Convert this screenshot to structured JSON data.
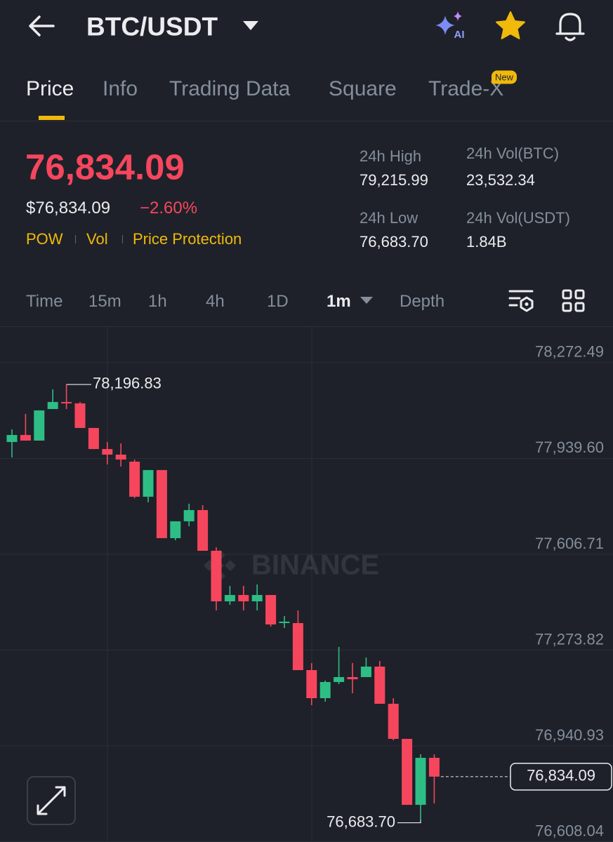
{
  "header": {
    "title": "BTC/USDT",
    "ai_label": "AI"
  },
  "tabs": [
    "Price",
    "Info",
    "Trading Data",
    "Square",
    "Trade-X"
  ],
  "new_badge": "New",
  "price": {
    "last": "76,834.09",
    "usd": "$76,834.09",
    "change": "−2.60%",
    "tags": [
      "POW",
      "Vol",
      "Price Protection"
    ]
  },
  "stats": [
    {
      "label": "24h High",
      "value": "79,215.99"
    },
    {
      "label": "24h Vol(BTC)",
      "value": "23,532.34"
    },
    {
      "label": "24h Low",
      "value": "76,683.70"
    },
    {
      "label": "24h Vol(USDT)",
      "value": "1.84B"
    }
  ],
  "intervals": [
    "Time",
    "15m",
    "1h",
    "4h",
    "1D",
    "1m",
    "Depth"
  ],
  "chart_data": {
    "type": "candlestick",
    "watermark": "BINANCE",
    "ylim": [
      76607,
      78399
    ],
    "yticks": [
      {
        "value": 78272.49,
        "label": "78,272.49"
      },
      {
        "value": 77939.6,
        "label": "77,939.60"
      },
      {
        "value": 77606.71,
        "label": "77,606.71"
      },
      {
        "value": 77273.82,
        "label": "77,273.82"
      },
      {
        "value": 76940.93,
        "label": "76,940.93"
      },
      {
        "value": 76608.04,
        "label": "76,608.04"
      }
    ],
    "grid": true,
    "up_color": "#2ebd85",
    "down_color": "#f6465d",
    "open": [
      77996.9,
      78021.3,
      78001.8,
      78111.5,
      78135.9,
      78131.1,
      78045.7,
      77972.5,
      77953.0,
      77928.6,
      77806.7,
      77899.4,
      77662.8,
      77721.4,
      77760.4,
      77618.9,
      77443.3,
      77465.3,
      77443.3,
      77465.3,
      77367.7,
      77367.7,
      77204.3,
      77106.8,
      77162.9,
      77180.0,
      77180.0,
      77216.5,
      77087.3,
      76965.4,
      76736.1,
      76899.5
    ],
    "high": [
      78040.8,
      78094.5,
      78106.7,
      78179.8,
      78196.83,
      78135.9,
      78045.7,
      77996.9,
      77992.0,
      77936.0,
      77899.4,
      77899.4,
      77721.4,
      77782.3,
      77777.4,
      77631.1,
      77497.0,
      77497.0,
      77501.9,
      77465.3,
      77392.1,
      77411.6,
      77228.7,
      77167.8,
      77284.8,
      77228.7,
      77248.2,
      77236.1,
      77106.8,
      76965.4,
      76911.7,
      76911.7
    ],
    "low": [
      77943.3,
      78001.8,
      78001.8,
      78111.5,
      78111.5,
      78045.7,
      77972.5,
      77918.9,
      77911.6,
      77801.8,
      77787.2,
      77662.8,
      77655.5,
      77704.3,
      77618.9,
      77411.6,
      77431.1,
      77411.6,
      77411.6,
      77355.6,
      77350.7,
      77204.3,
      77082.4,
      77094.6,
      77155.6,
      77123.9,
      77180.0,
      77087.3,
      76960.5,
      76736.1,
      76683.7,
      76741.0
    ],
    "close": [
      78021.3,
      78001.8,
      78106.7,
      78135.9,
      78131.1,
      78045.7,
      77972.5,
      77953.0,
      77936.0,
      77806.7,
      77899.4,
      77662.8,
      77721.4,
      77760.4,
      77618.9,
      77443.3,
      77465.3,
      77443.3,
      77465.3,
      77362.9,
      77372.6,
      77204.3,
      77106.8,
      77162.9,
      77180.0,
      77172.6,
      77216.5,
      77087.3,
      76965.4,
      76736.1,
      76899.5,
      76834.09
    ],
    "annotations": [
      {
        "label": "78,196.83",
        "value": 78196.83
      },
      {
        "label": "76,683.70",
        "value": 76683.7
      },
      {
        "label": "76,834.09",
        "value": 76834.09
      }
    ]
  }
}
